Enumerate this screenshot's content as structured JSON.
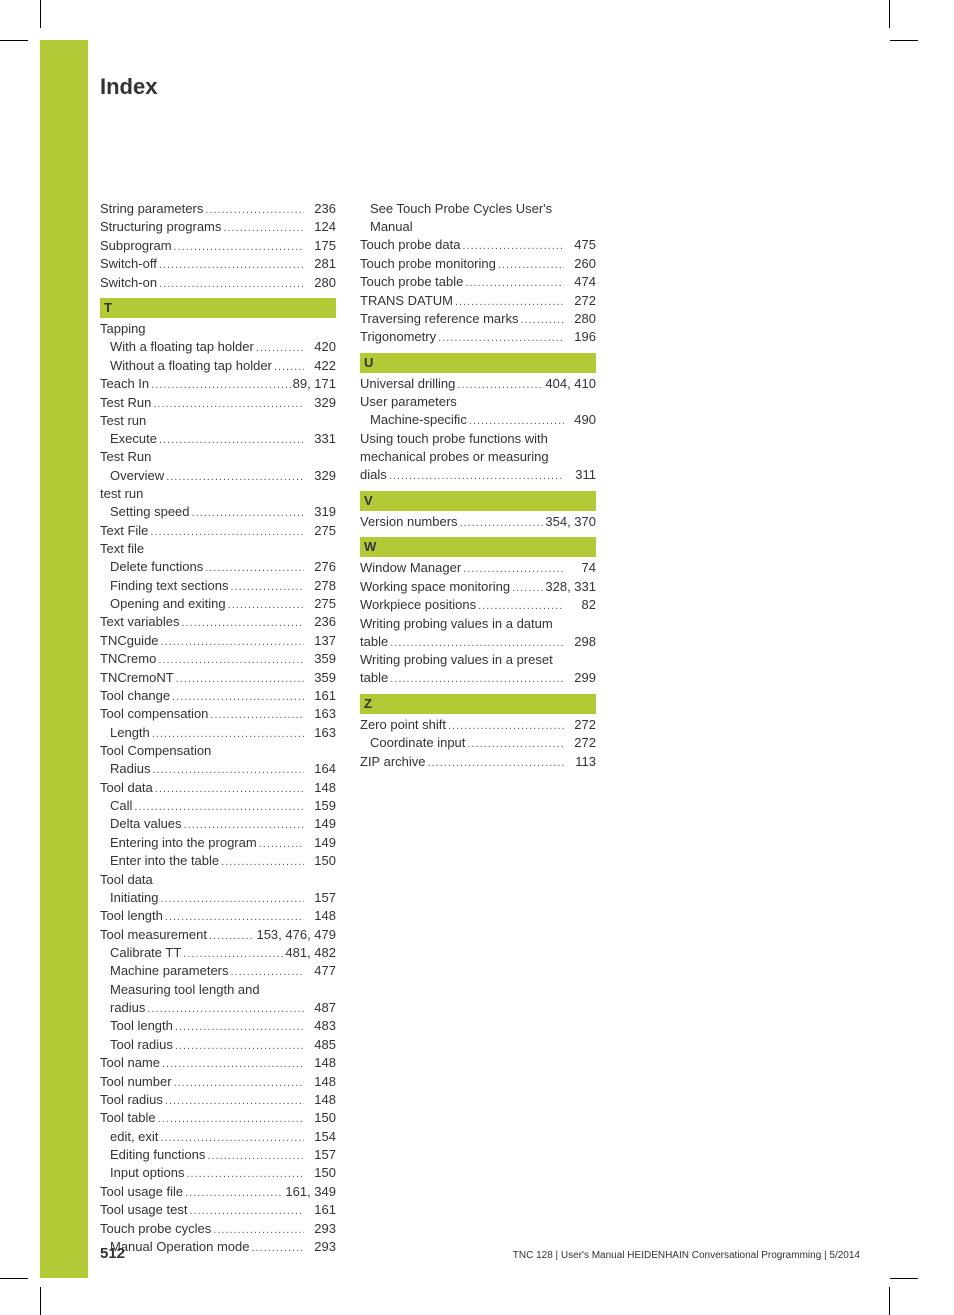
{
  "colors": {
    "accent": "#b3c935",
    "text": "#333333",
    "background": "#ffffff"
  },
  "typography": {
    "title_fontsize": 22,
    "body_fontsize": 13,
    "footer_fontsize": 10
  },
  "title": "Index",
  "footer": {
    "page_number": "512",
    "text": "TNC 128 | User's Manual HEIDENHAIN Conversational Programming | 5/2014"
  },
  "pre_section": [
    {
      "label": "String parameters",
      "page": "236",
      "indent": false
    },
    {
      "label": "Structuring programs",
      "page": "124",
      "indent": false
    },
    {
      "label": "Subprogram",
      "page": "175",
      "indent": false
    },
    {
      "label": "Switch-off",
      "page": "281",
      "indent": false
    },
    {
      "label": "Switch-on",
      "page": "280",
      "indent": false
    }
  ],
  "section_T": {
    "header": "T",
    "entries": [
      {
        "label": "Tapping",
        "page": "",
        "indent": false,
        "nodots": true
      },
      {
        "label": "With a floating tap holder",
        "page": "420",
        "indent": true
      },
      {
        "label": "Without a floating tap holder",
        "page": "422",
        "indent": true
      },
      {
        "label": "Teach In",
        "page": "89, 171",
        "indent": false
      },
      {
        "label": "Test Run",
        "page": "329",
        "indent": false
      },
      {
        "label": "Test run",
        "page": "",
        "indent": false,
        "nodots": true
      },
      {
        "label": "Execute",
        "page": "331",
        "indent": true
      },
      {
        "label": "Test Run",
        "page": "",
        "indent": false,
        "nodots": true
      },
      {
        "label": "Overview",
        "page": "329",
        "indent": true
      },
      {
        "label": "test run",
        "page": "",
        "indent": false,
        "nodots": true
      },
      {
        "label": "Setting speed",
        "page": "319",
        "indent": true
      },
      {
        "label": "Text File",
        "page": "275",
        "indent": false
      },
      {
        "label": "Text file",
        "page": "",
        "indent": false,
        "nodots": true
      },
      {
        "label": "Delete functions",
        "page": "276",
        "indent": true
      },
      {
        "label": "Finding text sections",
        "page": "278",
        "indent": true
      },
      {
        "label": "Opening and exiting",
        "page": "275",
        "indent": true
      },
      {
        "label": "Text variables",
        "page": "236",
        "indent": false
      },
      {
        "label": "TNCguide",
        "page": "137",
        "indent": false
      },
      {
        "label": "TNCremo",
        "page": "359",
        "indent": false
      },
      {
        "label": "TNCremoNT",
        "page": "359",
        "indent": false
      },
      {
        "label": "Tool change",
        "page": "161",
        "indent": false
      },
      {
        "label": "Tool compensation",
        "page": "163",
        "indent": false
      },
      {
        "label": "Length",
        "page": "163",
        "indent": true
      },
      {
        "label": "Tool Compensation",
        "page": "",
        "indent": false,
        "nodots": true
      },
      {
        "label": "Radius",
        "page": "164",
        "indent": true
      },
      {
        "label": "Tool data",
        "page": "148",
        "indent": false
      },
      {
        "label": "Call",
        "page": "159",
        "indent": true
      },
      {
        "label": "Delta values",
        "page": "149",
        "indent": true
      },
      {
        "label": "Entering into the program",
        "page": "149",
        "indent": true
      },
      {
        "label": "Enter into the table",
        "page": "150",
        "indent": true
      },
      {
        "label": "Tool data",
        "page": "",
        "indent": false,
        "nodots": true
      },
      {
        "label": "Initiating",
        "page": "157",
        "indent": true
      },
      {
        "label": "Tool length",
        "page": "148",
        "indent": false
      },
      {
        "label": "Tool measurement",
        "page": "153, 476, 479",
        "indent": false
      },
      {
        "label": "Calibrate TT",
        "page": "481, 482",
        "indent": true
      },
      {
        "label": "Machine parameters",
        "page": "477",
        "indent": true
      },
      {
        "label": "Measuring tool length and",
        "page": "",
        "indent": true,
        "nodots": true
      },
      {
        "label": "radius",
        "page": "487",
        "indent": true
      },
      {
        "label": "Tool length",
        "page": "483",
        "indent": true
      },
      {
        "label": "Tool radius",
        "page": "485",
        "indent": true
      },
      {
        "label": "Tool name",
        "page": "148",
        "indent": false
      },
      {
        "label": "Tool number",
        "page": "148",
        "indent": false
      },
      {
        "label": "Tool radius",
        "page": "148",
        "indent": false
      },
      {
        "label": "Tool table",
        "page": "150",
        "indent": false
      },
      {
        "label": "edit, exit",
        "page": "154",
        "indent": true
      },
      {
        "label": "Editing functions",
        "page": "157",
        "indent": true
      },
      {
        "label": "Input options",
        "page": "150",
        "indent": true
      },
      {
        "label": "Tool usage file",
        "page": "161, 349",
        "indent": false
      },
      {
        "label": "Tool usage test",
        "page": "161",
        "indent": false
      },
      {
        "label": "Touch probe cycles",
        "page": "293",
        "indent": false
      },
      {
        "label": "Manual Operation mode",
        "page": "293",
        "indent": true
      }
    ]
  },
  "col2_pre": [
    {
      "label": "See Touch Probe Cycles User's",
      "page": "",
      "indent": true,
      "nodots": true,
      "wrap": true
    },
    {
      "label": "Manual",
      "page": "",
      "indent": true,
      "nodots": true
    },
    {
      "label": "Touch probe data",
      "page": "475",
      "indent": false
    },
    {
      "label": "Touch probe monitoring",
      "page": "260",
      "indent": false
    },
    {
      "label": "Touch probe table",
      "page": "474",
      "indent": false
    },
    {
      "label": "TRANS DATUM",
      "page": "272",
      "indent": false
    },
    {
      "label": "Traversing reference marks",
      "page": "280",
      "indent": false
    },
    {
      "label": "Trigonometry",
      "page": "196",
      "indent": false
    }
  ],
  "section_U": {
    "header": "U",
    "entries": [
      {
        "label": "Universal drilling",
        "page": "404, 410",
        "indent": false
      },
      {
        "label": "User parameters",
        "page": "",
        "indent": false,
        "nodots": true
      },
      {
        "label": "Machine-specific",
        "page": "490",
        "indent": true
      },
      {
        "label": "Using touch probe functions with",
        "page": "",
        "indent": false,
        "nodots": true,
        "wrap": true
      },
      {
        "label": "mechanical probes or measuring",
        "page": "",
        "indent": false,
        "nodots": true,
        "wrap": true
      },
      {
        "label": "dials",
        "page": "311",
        "indent": false
      }
    ]
  },
  "section_V": {
    "header": "V",
    "entries": [
      {
        "label": "Version numbers",
        "page": "354, 370",
        "indent": false
      }
    ]
  },
  "section_W": {
    "header": "W",
    "entries": [
      {
        "label": "Window Manager",
        "page": "74",
        "indent": false
      },
      {
        "label": "Working space monitoring",
        "page": "328, 331",
        "indent": false
      },
      {
        "label": "Workpiece positions",
        "page": "82",
        "indent": false
      },
      {
        "label": "Writing probing values in a datum",
        "page": "",
        "indent": false,
        "nodots": true,
        "wrap": true
      },
      {
        "label": "table",
        "page": "298",
        "indent": false
      },
      {
        "label": "Writing probing values in a preset",
        "page": "",
        "indent": false,
        "nodots": true,
        "wrap": true
      },
      {
        "label": "table",
        "page": "299",
        "indent": false
      }
    ]
  },
  "section_Z": {
    "header": "Z",
    "entries": [
      {
        "label": "Zero point shift",
        "page": "272",
        "indent": false
      },
      {
        "label": "Coordinate input",
        "page": "272",
        "indent": true
      },
      {
        "label": "ZIP archive",
        "page": "113",
        "indent": false
      }
    ]
  }
}
